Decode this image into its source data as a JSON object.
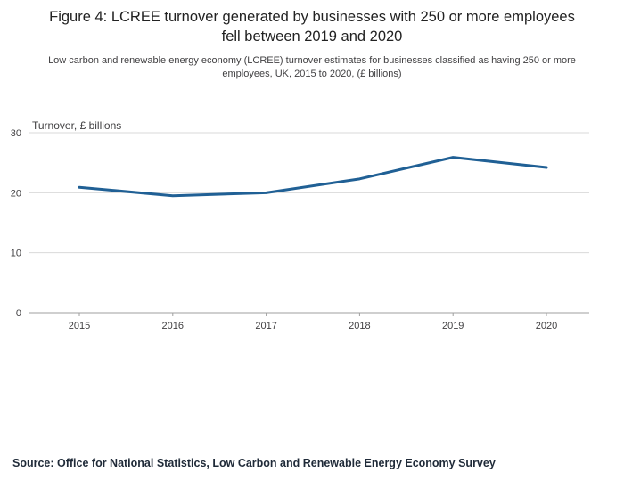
{
  "header": {
    "title": "Figure 4: LCREE turnover generated by businesses with 250 or more employees fell between 2019 and 2020",
    "subtitle": "Low carbon and renewable energy economy (LCREE) turnover estimates for businesses classified as having 250 or more employees, UK, 2015 to 2020, (£ billions)"
  },
  "chart_data": {
    "type": "line",
    "unit_label": "Turnover, £ billions",
    "x": [
      2015,
      2016,
      2017,
      2018,
      2019,
      2020
    ],
    "series": [
      {
        "name": "Turnover, £ billions",
        "values": [
          20.9,
          19.5,
          20.0,
          22.3,
          25.9,
          24.2
        ]
      }
    ],
    "ylim": [
      0,
      30
    ],
    "yticks": [
      0,
      10,
      20,
      30
    ],
    "grid": true,
    "legend": "none",
    "line_color": "#206095",
    "grid_color": "#d9d9d9",
    "axis_color": "#9f9f9f",
    "tick_label_color": "#414042"
  },
  "footer": {
    "source": "Source: Office for National Statistics, Low Carbon and Renewable Energy Economy Survey"
  }
}
